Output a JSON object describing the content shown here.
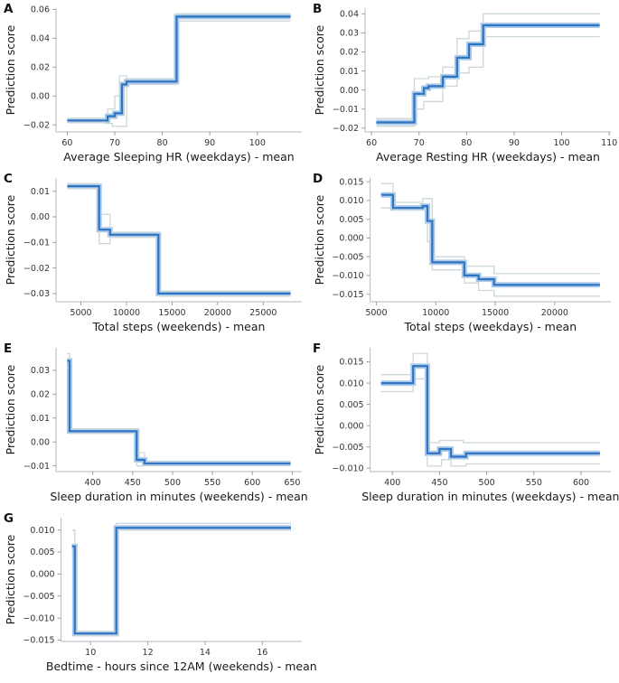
{
  "figure": {
    "background": "#ffffff",
    "description": "Step plots of prediction score vs wearable features, panels A-G"
  },
  "style": {
    "line_color": "#2e74c4",
    "halo_color": "#abc9e8",
    "ci_color": "#ccd7db",
    "spine_color": "#b2bac0",
    "tick_mark_color": "#9aa3aa",
    "tick_label_color": "#333333",
    "label_color": "#1a1a1a",
    "letter_color": "#111111"
  },
  "chart_data": [
    {
      "panel": "A",
      "type": "line",
      "grid": false,
      "legend": "none",
      "xlabel": "Average Sleeping HR (weekdays) - mean",
      "ylabel": "Prediction score",
      "xlim": [
        57.65,
        109.35
      ],
      "ylim": [
        -0.0249,
        0.0609
      ],
      "xticks": [
        60,
        70,
        80,
        90,
        100
      ],
      "xtick_labels": [
        "60",
        "70",
        "80",
        "90",
        "100"
      ],
      "yticks": [
        -0.02,
        0,
        0.02,
        0.04,
        0.06
      ],
      "ytick_labels": [
        "−0.02",
        "0.00",
        "0.02",
        "0.04",
        "0.06"
      ],
      "series": [
        {
          "name": "prediction",
          "x": [
            60,
            68.5,
            70,
            71.5,
            72.5,
            83
          ],
          "y": [
            -0.017,
            -0.014,
            -0.012,
            0.008,
            0.01,
            0.055
          ],
          "x_end": 107
        },
        {
          "name": "upper_ci",
          "x": [
            60,
            68.5,
            70,
            71,
            72.5,
            83
          ],
          "y": [
            -0.016,
            -0.009,
            0.0,
            0.014,
            0.012,
            0.057
          ],
          "x_end": 107
        },
        {
          "name": "lower_ci",
          "x": [
            60,
            68,
            69.5,
            72.5,
            83
          ],
          "y": [
            -0.018,
            -0.019,
            -0.021,
            0.008,
            0.052
          ],
          "x_end": 107
        }
      ]
    },
    {
      "panel": "B",
      "type": "line",
      "grid": false,
      "legend": "none",
      "xlabel": "Average Resting HR (weekdays) - mean",
      "ylabel": "Prediction score",
      "xlim": [
        58.65,
        110.35
      ],
      "ylim": [
        -0.022,
        0.043
      ],
      "xticks": [
        60,
        70,
        80,
        90,
        100,
        110
      ],
      "xtick_labels": [
        "60",
        "70",
        "80",
        "90",
        "100",
        "110"
      ],
      "yticks": [
        -0.02,
        -0.01,
        0,
        0.01,
        0.02,
        0.03,
        0.04
      ],
      "ytick_labels": [
        "−0.02",
        "−0.01",
        "0.00",
        "0.01",
        "0.02",
        "0.03",
        "0.04"
      ],
      "series": [
        {
          "name": "prediction",
          "x": [
            61,
            69,
            71,
            72,
            75,
            78,
            80.5,
            83.5
          ],
          "y": [
            -0.017,
            -0.002,
            0.001,
            0.002,
            0.007,
            0.017,
            0.024,
            0.034
          ],
          "x_end": 108
        },
        {
          "name": "upper_ci",
          "x": [
            61,
            69,
            72,
            75,
            78,
            80.5,
            83.5
          ],
          "y": [
            -0.015,
            0.006,
            0.007,
            0.012,
            0.027,
            0.031,
            0.04
          ],
          "x_end": 108
        },
        {
          "name": "lower_ci",
          "x": [
            61,
            69,
            71,
            75,
            78,
            80.5,
            83.5
          ],
          "y": [
            -0.019,
            -0.01,
            -0.006,
            0.002,
            0.009,
            0.012,
            0.028
          ],
          "x_end": 108
        }
      ]
    },
    {
      "panel": "C",
      "type": "line",
      "grid": false,
      "legend": "none",
      "xlabel": "Total steps (weekends) - mean",
      "ylabel": "Prediction score",
      "xlim": [
        2275,
        29225
      ],
      "ylim": [
        -0.0332,
        0.0152
      ],
      "xticks": [
        5000,
        10000,
        15000,
        20000,
        25000
      ],
      "xtick_labels": [
        "5000",
        "10000",
        "15000",
        "20000",
        "25000"
      ],
      "yticks": [
        -0.03,
        -0.02,
        -0.01,
        0,
        0.01
      ],
      "ytick_labels": [
        "−0.03",
        "−0.02",
        "−0.01",
        "0.00",
        "0.01"
      ],
      "series": [
        {
          "name": "prediction",
          "x": [
            3500,
            7000,
            8200,
            13500
          ],
          "y": [
            0.012,
            -0.005,
            -0.007,
            -0.03
          ],
          "x_end": 28000
        },
        {
          "name": "upper_ci",
          "x": [
            3500,
            7000,
            8200,
            13500
          ],
          "y": [
            0.013,
            0.001,
            -0.006,
            -0.029
          ],
          "x_end": 28000
        },
        {
          "name": "lower_ci",
          "x": [
            3500,
            7000,
            8200,
            13500
          ],
          "y": [
            0.011,
            -0.0105,
            -0.008,
            -0.031
          ],
          "x_end": 28000
        }
      ]
    },
    {
      "panel": "D",
      "type": "line",
      "grid": false,
      "legend": "none",
      "xlabel": "Total steps (weekdays) - mean",
      "ylabel": "Prediction score",
      "xlim": [
        4480,
        24720
      ],
      "ylim": [
        -0.017,
        0.016
      ],
      "xticks": [
        5000,
        10000,
        15000,
        20000
      ],
      "xtick_labels": [
        "5000",
        "10000",
        "15000",
        "20000"
      ],
      "yticks": [
        -0.015,
        -0.01,
        -0.005,
        0,
        0.005,
        0.01,
        0.015
      ],
      "ytick_labels": [
        "−0.015",
        "−0.010",
        "−0.005",
        "0.000",
        "0.005",
        "0.010",
        "0.015"
      ],
      "series": [
        {
          "name": "prediction",
          "x": [
            5400,
            6400,
            8900,
            9300,
            9700,
            12400,
            13600,
            14900
          ],
          "y": [
            0.0115,
            0.008,
            0.0085,
            0.0045,
            -0.0065,
            -0.01,
            -0.011,
            -0.0125
          ],
          "x_end": 23800
        },
        {
          "name": "upper_ci",
          "x": [
            5400,
            6400,
            8900,
            9700,
            12400,
            14900
          ],
          "y": [
            0.0145,
            0.0095,
            0.0105,
            -0.005,
            -0.0075,
            -0.0095
          ],
          "x_end": 23800
        },
        {
          "name": "lower_ci",
          "x": [
            5400,
            6400,
            9300,
            9700,
            12400,
            13600,
            14900
          ],
          "y": [
            0.008,
            0.0075,
            -0.001,
            -0.0085,
            -0.012,
            -0.014,
            -0.0155
          ],
          "x_end": 23800
        }
      ]
    },
    {
      "panel": "E",
      "type": "line",
      "grid": false,
      "legend": "none",
      "xlabel": "Sleep duration in minutes (weekends) - mean",
      "ylabel": "Prediction score",
      "xlim": [
        354,
        662
      ],
      "ylim": [
        -0.0124,
        0.0394
      ],
      "xticks": [
        400,
        450,
        500,
        550,
        600,
        650
      ],
      "xtick_labels": [
        "400",
        "450",
        "500",
        "550",
        "600",
        "650"
      ],
      "yticks": [
        -0.01,
        0,
        0.01,
        0.02,
        0.03
      ],
      "ytick_labels": [
        "−0.01",
        "0.00",
        "0.01",
        "0.02",
        "0.03"
      ],
      "series": [
        {
          "name": "prediction",
          "x": [
            368,
            371,
            455,
            465
          ],
          "y": [
            0.034,
            0.0045,
            -0.0075,
            -0.009
          ],
          "x_end": 648
        },
        {
          "name": "upper_ci",
          "x": [
            368,
            371,
            455,
            465
          ],
          "y": [
            0.037,
            0.0055,
            -0.0045,
            -0.0085
          ],
          "x_end": 648
        },
        {
          "name": "lower_ci",
          "x": [
            368,
            371,
            455,
            465
          ],
          "y": [
            0.031,
            0.0035,
            -0.01,
            -0.0095
          ],
          "x_end": 648
        }
      ]
    },
    {
      "panel": "F",
      "type": "line",
      "grid": false,
      "legend": "none",
      "xlabel": "Sleep duration in minutes (weekdays) - mean",
      "ylabel": "Prediction score",
      "xlim": [
        376.4,
        631.6
      ],
      "ylim": [
        -0.0108,
        0.0183
      ],
      "xticks": [
        400,
        450,
        500,
        550,
        600
      ],
      "xtick_labels": [
        "400",
        "450",
        "500",
        "550",
        "600"
      ],
      "yticks": [
        -0.01,
        -0.005,
        0,
        0.005,
        0.01,
        0.015
      ],
      "ytick_labels": [
        "−0.010",
        "−0.005",
        "0.000",
        "0.005",
        "0.010",
        "0.015"
      ],
      "series": [
        {
          "name": "prediction",
          "x": [
            388,
            422,
            437,
            450,
            462,
            478
          ],
          "y": [
            0.01,
            0.014,
            -0.0065,
            -0.0055,
            -0.0073,
            -0.0065
          ],
          "x_end": 620
        },
        {
          "name": "upper_ci",
          "x": [
            388,
            422,
            437,
            450,
            475
          ],
          "y": [
            0.012,
            0.017,
            -0.004,
            -0.0035,
            -0.004
          ],
          "x_end": 620
        },
        {
          "name": "lower_ci",
          "x": [
            388,
            422,
            437,
            452,
            462,
            478
          ],
          "y": [
            0.008,
            0.011,
            -0.0095,
            -0.008,
            -0.0095,
            -0.009
          ],
          "x_end": 620
        }
      ]
    },
    {
      "panel": "G",
      "type": "line",
      "grid": false,
      "legend": "none",
      "xlabel": "Bedtime - hours since 12AM (weekends) - mean",
      "ylabel": "Prediction score",
      "xlim": [
        8.97,
        17.38
      ],
      "ylim": [
        -0.0153,
        0.0128
      ],
      "xticks": [
        10,
        12,
        14,
        16
      ],
      "xtick_labels": [
        "10",
        "12",
        "14",
        "16"
      ],
      "yticks": [
        -0.015,
        -0.01,
        -0.005,
        0,
        0.005,
        0.01
      ],
      "ytick_labels": [
        "−0.015",
        "−0.010",
        "−0.005",
        "0.000",
        "0.005",
        "0.010"
      ],
      "series": [
        {
          "name": "prediction",
          "x": [
            9.35,
            9.45,
            10.9
          ],
          "y": [
            0.0063,
            -0.0135,
            0.0105
          ],
          "x_end": 17
        },
        {
          "name": "upper_ci",
          "x": [
            9.35,
            9.45,
            10.9
          ],
          "y": [
            0.01,
            -0.013,
            0.0115
          ],
          "x_end": 17
        },
        {
          "name": "lower_ci",
          "x": [
            9.35,
            9.45,
            10.9
          ],
          "y": [
            0.005,
            -0.014,
            0.01
          ],
          "x_end": 17
        }
      ]
    }
  ]
}
